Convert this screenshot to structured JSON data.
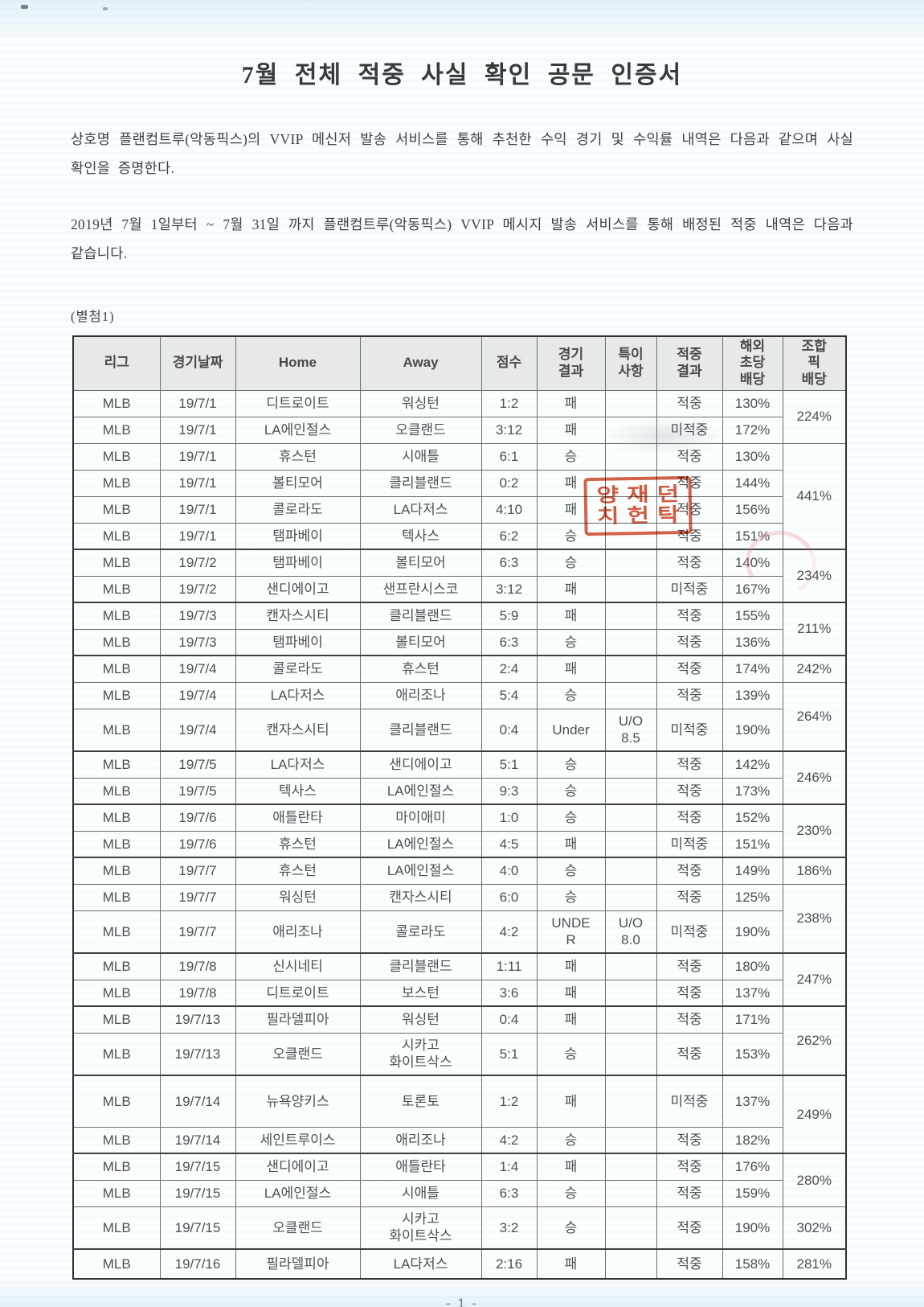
{
  "doc": {
    "title": "7월 전체 적중 사실 확인 공문 인증서",
    "paragraph1": "상호명 플랜컴트루(악동픽스)의 VVIP 메신저 발송 서비스를 통해 추천한 수익 경기 및 수익률 내역은 다음과 같으며 사실 확인을 증명한다.",
    "paragraph2": "2019년 7월 1일부터 ~ 7월 31일 까지 플랜컴트루(악동픽스) VVIP 메시지 발송 서비스를 통해 배정된 적중 내역은 다음과 같습니다.",
    "attachment_label": "(별첨1)",
    "page_number": "- 1 -"
  },
  "stamp": {
    "line1": "양재던",
    "line2": "치헌탁"
  },
  "colors": {
    "hit": "#e0655f",
    "miss": "#3ea3dc",
    "stamp_red": "#cf4828",
    "header_bg": "#e7e9e9"
  },
  "table": {
    "headers": [
      "리그",
      "경기날짜",
      "Home",
      "Away",
      "점수",
      "경기\n결과",
      "특이\n사항",
      "적중\n결과",
      "해외\n초당\n배당",
      "조합\n픽\n배당"
    ],
    "rows": [
      {
        "league": "MLB",
        "date": "19/7/1",
        "home": "디트로이트",
        "away": "워싱턴",
        "score": "1:2",
        "result": "패",
        "note": "",
        "hit": "적중",
        "hit_type": "hit",
        "odds": "130%",
        "combo": {
          "value": "224%",
          "span": 2
        }
      },
      {
        "league": "MLB",
        "date": "19/7/1",
        "home": "LA에인절스",
        "away": "오클랜드",
        "score": "3:12",
        "result": "패",
        "note": "",
        "hit": "미적중",
        "hit_type": "miss",
        "odds": "172%"
      },
      {
        "league": "MLB",
        "date": "19/7/1",
        "home": "휴스턴",
        "away": "시애틀",
        "score": "6:1",
        "result": "승",
        "note": "",
        "hit": "적중",
        "hit_type": "hit",
        "odds": "130%",
        "combo": {
          "value": "441%",
          "span": 4
        }
      },
      {
        "league": "MLB",
        "date": "19/7/1",
        "home": "볼티모어",
        "away": "클리블랜드",
        "score": "0:2",
        "result": "패",
        "note": "",
        "hit": "적중",
        "hit_type": "hit",
        "odds": "144%"
      },
      {
        "league": "MLB",
        "date": "19/7/1",
        "home": "콜로라도",
        "away": "LA다저스",
        "score": "4:10",
        "result": "패",
        "note": "",
        "hit": "적중",
        "hit_type": "hit",
        "odds": "156%"
      },
      {
        "league": "MLB",
        "date": "19/7/1",
        "home": "탬파베이",
        "away": "텍사스",
        "score": "6:2",
        "result": "승",
        "note": "",
        "hit": "적중",
        "hit_type": "hit",
        "odds": "151%"
      },
      {
        "league": "MLB",
        "date": "19/7/2",
        "home": "탬파베이",
        "away": "볼티모어",
        "score": "6:3",
        "result": "승",
        "note": "",
        "hit": "적중",
        "hit_type": "hit",
        "odds": "140%",
        "combo": {
          "value": "234%",
          "span": 2
        }
      },
      {
        "league": "MLB",
        "date": "19/7/2",
        "home": "샌디에이고",
        "away": "샌프란시스코",
        "score": "3:12",
        "result": "패",
        "note": "",
        "hit": "미적중",
        "hit_type": "miss",
        "odds": "167%"
      },
      {
        "league": "MLB",
        "date": "19/7/3",
        "home": "캔자스시티",
        "away": "클리블랜드",
        "score": "5:9",
        "result": "패",
        "note": "",
        "hit": "적중",
        "hit_type": "hit",
        "odds": "155%",
        "combo": {
          "value": "211%",
          "span": 2
        }
      },
      {
        "league": "MLB",
        "date": "19/7/3",
        "home": "탬파베이",
        "away": "볼티모어",
        "score": "6:3",
        "result": "승",
        "note": "",
        "hit": "적중",
        "hit_type": "hit",
        "odds": "136%"
      },
      {
        "league": "MLB",
        "date": "19/7/4",
        "home": "콜로라도",
        "away": "휴스턴",
        "score": "2:4",
        "result": "패",
        "note": "",
        "hit": "적중",
        "hit_type": "hit",
        "odds": "174%",
        "combo": {
          "value": "242%",
          "span": 1
        }
      },
      {
        "league": "MLB",
        "date": "19/7/4",
        "home": "LA다저스",
        "away": "애리조나",
        "score": "5:4",
        "result": "승",
        "note": "",
        "hit": "적중",
        "hit_type": "hit",
        "odds": "139%",
        "combo": {
          "value": "264%",
          "span": 2
        }
      },
      {
        "league": "MLB",
        "date": "19/7/4",
        "home": "캔자스시티",
        "away": "클리블랜드",
        "score": "0:4",
        "result": "Under",
        "note": "U/O\n8.5",
        "hit": "미적중",
        "hit_type": "miss",
        "odds": "190%"
      },
      {
        "league": "MLB",
        "date": "19/7/5",
        "home": "LA다저스",
        "away": "샌디에이고",
        "score": "5:1",
        "result": "승",
        "note": "",
        "hit": "적중",
        "hit_type": "hit",
        "odds": "142%",
        "combo": {
          "value": "246%",
          "span": 2
        }
      },
      {
        "league": "MLB",
        "date": "19/7/5",
        "home": "텍사스",
        "away": "LA에인절스",
        "score": "9:3",
        "result": "승",
        "note": "",
        "hit": "적중",
        "hit_type": "hit",
        "odds": "173%"
      },
      {
        "league": "MLB",
        "date": "19/7/6",
        "home": "애틀란타",
        "away": "마이애미",
        "score": "1:0",
        "result": "승",
        "note": "",
        "hit": "적중",
        "hit_type": "hit",
        "odds": "152%",
        "combo": {
          "value": "230%",
          "span": 2
        }
      },
      {
        "league": "MLB",
        "date": "19/7/6",
        "home": "휴스턴",
        "away": "LA에인절스",
        "score": "4:5",
        "result": "패",
        "note": "",
        "hit": "미적중",
        "hit_type": "miss",
        "odds": "151%"
      },
      {
        "league": "MLB",
        "date": "19/7/7",
        "home": "휴스턴",
        "away": "LA에인절스",
        "score": "4:0",
        "result": "승",
        "note": "",
        "hit": "적중",
        "hit_type": "hit",
        "odds": "149%",
        "combo": {
          "value": "186%",
          "span": 1
        }
      },
      {
        "league": "MLB",
        "date": "19/7/7",
        "home": "워싱턴",
        "away": "캔자스시티",
        "score": "6:0",
        "result": "승",
        "note": "",
        "hit": "적중",
        "hit_type": "hit",
        "odds": "125%",
        "combo": {
          "value": "238%",
          "span": 2
        }
      },
      {
        "league": "MLB",
        "date": "19/7/7",
        "home": "애리조나",
        "away": "콜로라도",
        "score": "4:2",
        "result": "UNDE\nR",
        "note": "U/O\n8.0",
        "hit": "미적중",
        "hit_type": "miss",
        "odds": "190%"
      },
      {
        "league": "MLB",
        "date": "19/7/8",
        "home": "신시네티",
        "away": "클리블랜드",
        "score": "1:11",
        "result": "패",
        "note": "",
        "hit": "적중",
        "hit_type": "hit",
        "odds": "180%",
        "combo": {
          "value": "247%",
          "span": 2
        }
      },
      {
        "league": "MLB",
        "date": "19/7/8",
        "home": "디트로이트",
        "away": "보스턴",
        "score": "3:6",
        "result": "패",
        "note": "",
        "hit": "적중",
        "hit_type": "hit",
        "odds": "137%"
      },
      {
        "league": "MLB",
        "date": "19/7/13",
        "home": "필라델피아",
        "away": "워싱턴",
        "score": "0:4",
        "result": "패",
        "note": "",
        "hit": "적중",
        "hit_type": "hit",
        "odds": "171%",
        "combo": {
          "value": "262%",
          "span": 2
        }
      },
      {
        "league": "MLB",
        "date": "19/7/13",
        "home": "오클랜드",
        "away": "시카고\n화이트삭스",
        "score": "5:1",
        "result": "승",
        "note": "",
        "hit": "적중",
        "hit_type": "hit",
        "odds": "153%"
      },
      {
        "league": "MLB",
        "date": "19/7/14",
        "home": "뉴욕양키스",
        "away": "토론토",
        "score": "1:2",
        "result": "패",
        "note": "",
        "hit": "미적중",
        "hit_type": "miss",
        "odds": "137%",
        "combo": {
          "value": "249%",
          "span": 2
        }
      },
      {
        "league": "MLB",
        "date": "19/7/14",
        "home": "세인트루이스",
        "away": "애리조나",
        "score": "4:2",
        "result": "승",
        "note": "",
        "hit": "적중",
        "hit_type": "hit",
        "odds": "182%"
      },
      {
        "league": "MLB",
        "date": "19/7/15",
        "home": "샌디에이고",
        "away": "애틀란타",
        "score": "1:4",
        "result": "패",
        "note": "",
        "hit": "적중",
        "hit_type": "hit",
        "odds": "176%",
        "combo": {
          "value": "280%",
          "span": 2
        }
      },
      {
        "league": "MLB",
        "date": "19/7/15",
        "home": "LA에인절스",
        "away": "시애틀",
        "score": "6:3",
        "result": "승",
        "note": "",
        "hit": "적중",
        "hit_type": "hit",
        "odds": "159%"
      },
      {
        "league": "MLB",
        "date": "19/7/15",
        "home": "오클랜드",
        "away": "시카고\n화이트삭스",
        "score": "3:2",
        "result": "승",
        "note": "",
        "hit": "적중",
        "hit_type": "hit",
        "odds": "190%",
        "combo": {
          "value": "302%",
          "span": 1
        }
      },
      {
        "league": "MLB",
        "date": "19/7/16",
        "home": "필라델피아",
        "away": "LA다저스",
        "score": "2:16",
        "result": "패",
        "note": "",
        "hit": "적중",
        "hit_type": "hit",
        "odds": "158%",
        "combo": {
          "value": "281%",
          "span": 1
        }
      }
    ]
  }
}
